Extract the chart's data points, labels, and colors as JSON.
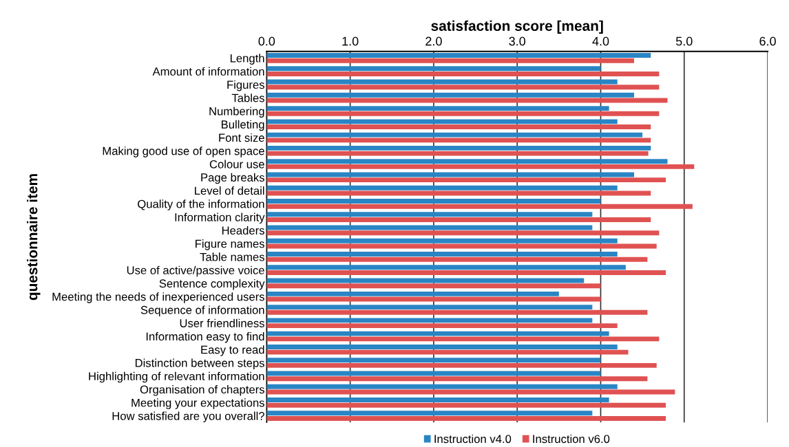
{
  "chart_data": {
    "type": "bar",
    "orientation": "horizontal",
    "xlabel": "satisfaction score [mean]",
    "ylabel": "questionnaire item",
    "categories": [
      "Length",
      "Amount of information",
      "Figures",
      "Tables",
      "Numbering",
      "Bulleting",
      "Font size",
      "Making good use of open space",
      "Colour use",
      "Page breaks",
      "Level of detail",
      "Quality of the information",
      "Information clarity",
      "Headers",
      "Figure names",
      "Table names",
      "Use of active/passive voice",
      "Sentence complexity",
      "Meeting the needs of inexperienced users",
      "Sequence of information",
      "User friendliness",
      "Information easy to find",
      "Easy to read",
      "Distinction between steps",
      "Highlighting of relevant information",
      "Organisation of chapters",
      "Meeting your expectations",
      "How satisfied are you overall?"
    ],
    "series": [
      {
        "name": "Instruction v4.0",
        "color": "#2a85c4",
        "values": [
          4.6,
          4.0,
          4.2,
          4.4,
          4.1,
          4.2,
          4.5,
          4.6,
          4.8,
          4.4,
          4.2,
          4.0,
          3.9,
          3.9,
          4.2,
          4.2,
          4.3,
          3.8,
          3.5,
          3.9,
          3.9,
          4.1,
          4.2,
          4.0,
          4.0,
          4.2,
          4.1,
          3.9
        ]
      },
      {
        "name": "Instruction v6.0",
        "color": "#e05252",
        "values": [
          4.4,
          4.7,
          4.7,
          4.8,
          4.7,
          4.6,
          4.6,
          4.57,
          5.12,
          4.78,
          4.6,
          5.1,
          4.6,
          4.7,
          4.67,
          4.56,
          4.78,
          4.0,
          4.0,
          4.56,
          4.2,
          4.7,
          4.33,
          4.67,
          4.56,
          4.89,
          4.78,
          4.78
        ]
      }
    ],
    "xlim": [
      0,
      6
    ],
    "xticks": [
      {
        "value": 0,
        "label": "0.0"
      },
      {
        "value": 1,
        "label": "1.0"
      },
      {
        "value": 2,
        "label": "2.0"
      },
      {
        "value": 3,
        "label": "3.0"
      },
      {
        "value": 4,
        "label": "4.0"
      },
      {
        "value": 5,
        "label": "5.0"
      },
      {
        "value": 6,
        "label": "6.0"
      }
    ],
    "grid": "x",
    "legend": "bottom"
  }
}
